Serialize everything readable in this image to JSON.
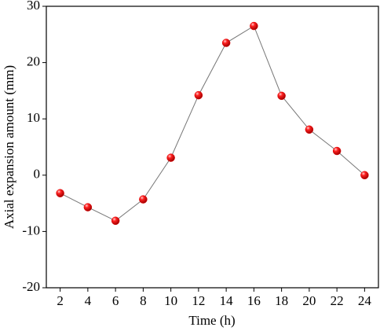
{
  "chart_data": {
    "type": "line",
    "x_label": "Time (h)",
    "y_label": "Axial expansion amount (mm)",
    "x": [
      2,
      4,
      6,
      8,
      10,
      12,
      14,
      16,
      18,
      20,
      22,
      24
    ],
    "series": [
      {
        "color": "#e00000",
        "line_color": "#777777",
        "values": [
          -3.2,
          -5.7,
          -8.1,
          -4.3,
          3.1,
          14.2,
          23.5,
          26.5,
          14.1,
          8.1,
          4.3,
          0
        ]
      }
    ],
    "xlim": [
      1,
      25
    ],
    "xticks": [
      2,
      4,
      6,
      8,
      10,
      12,
      14,
      16,
      18,
      20,
      22,
      24
    ],
    "ylim": [
      -20,
      30
    ],
    "yticks": [
      -20,
      -10,
      0,
      10,
      20,
      30
    ],
    "grid": false
  }
}
